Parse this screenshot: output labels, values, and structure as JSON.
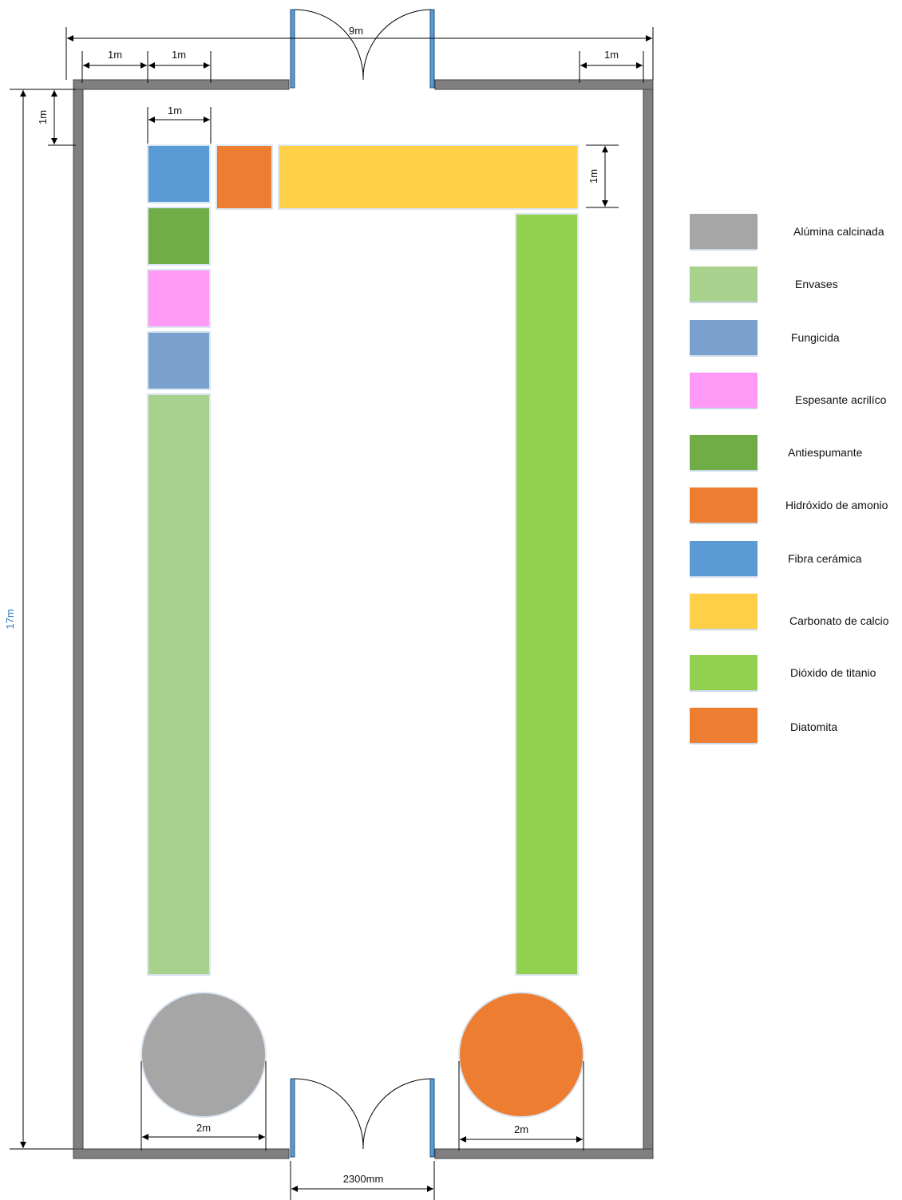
{
  "dimensions": {
    "top_total": "9m",
    "top_left_1": "1m",
    "top_left_2": "1m",
    "top_right": "1m",
    "left_offset": "1m",
    "shelf_width": "1m",
    "shelf_depth": "1m",
    "height_total": "17m",
    "circle_left": "2m",
    "circle_right": "2m",
    "bottom_door": "2300mm"
  },
  "colors": {
    "wall": "#7f7f7f",
    "door": "#5b9bd5",
    "dim_height": "#2e75b6",
    "alumina": "#a6a6a6",
    "envases": "#a9d18e",
    "fungicida": "#7aa1cd",
    "espesante": "#ff99f6",
    "antiespumante": "#70ad47",
    "hidroxido": "#ed7d31",
    "fibra": "#5b9bd5",
    "carbonato": "#ffcf47",
    "dioxido": "#92d050",
    "diatomita": "#ed7d31"
  },
  "legend": [
    {
      "key": "alumina",
      "label": "Alúmina calcinada",
      "color": "#a6a6a6"
    },
    {
      "key": "envases",
      "label": "Envases",
      "color": "#a9d18e"
    },
    {
      "key": "fungicida",
      "label": "Fungicida",
      "color": "#7aa1cd"
    },
    {
      "key": "espesante",
      "label": "Espesante acrilíco",
      "color": "#ff99f6"
    },
    {
      "key": "antiespumante",
      "label": "Antiespumante",
      "color": "#70ad47"
    },
    {
      "key": "hidroxido",
      "label": "Hidróxido de amonio",
      "color": "#ed7d31"
    },
    {
      "key": "fibra",
      "label": "Fibra cerámica",
      "color": "#5b9bd5"
    },
    {
      "key": "carbonato",
      "label": "Carbonato de calcio",
      "color": "#ffcf47"
    },
    {
      "key": "dioxido",
      "label": "Dióxido de titanio",
      "color": "#92d050"
    },
    {
      "key": "diatomita",
      "label": "Diatomita",
      "color": "#ed7d31"
    }
  ]
}
